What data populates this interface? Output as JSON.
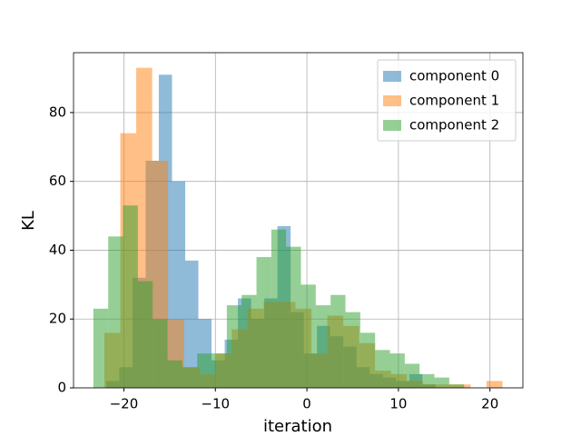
{
  "chart_data": {
    "type": "histogram",
    "x_label": "iteration",
    "y_label": "KL",
    "xlim": [
      -25.5,
      23.6
    ],
    "ylim": [
      0,
      97.4
    ],
    "xticks": [
      {
        "value": -20,
        "label": "−20"
      },
      {
        "value": -10,
        "label": "−10"
      },
      0,
      10,
      20
    ],
    "yticks": [
      0,
      20,
      40,
      60,
      80
    ],
    "grid": true,
    "legend": "upper right",
    "alpha": 0.5,
    "series": [
      {
        "name": "component 0",
        "color": "#1f77b4",
        "bins": [
          -21.94,
          -20.5,
          -19.06,
          -17.62,
          -16.18,
          -14.74,
          -13.3,
          -11.86,
          -10.42,
          -8.98,
          -7.54,
          -6.1,
          -4.66,
          -3.22,
          -1.78,
          -0.34,
          1.1,
          2.54,
          3.98,
          5.42,
          6.86,
          8.3,
          9.74,
          11.18,
          12.62,
          14.06
        ],
        "values": [
          2,
          6,
          32,
          66,
          91,
          60,
          37,
          20,
          8,
          14,
          26,
          20,
          26,
          47,
          22,
          10,
          18,
          15,
          12,
          6,
          4,
          3,
          2,
          4,
          1
        ]
      },
      {
        "name": "component 1",
        "color": "#ff7f0e",
        "bins": [
          -22.13,
          -20.39,
          -18.65,
          -16.91,
          -15.17,
          -13.43,
          -11.69,
          -9.95,
          -8.21,
          -6.47,
          -4.73,
          -2.99,
          -1.25,
          0.49,
          2.23,
          3.97,
          5.71,
          7.45,
          9.19,
          10.93,
          12.67,
          14.41,
          16.15,
          17.89,
          19.63,
          21.37
        ],
        "values": [
          16,
          74,
          93,
          66,
          20,
          6,
          4,
          10,
          17,
          23,
          25,
          25,
          23,
          10,
          21,
          18,
          13,
          5,
          4,
          2,
          1,
          1,
          1,
          0,
          2
        ]
      },
      {
        "name": "component 2",
        "color": "#2ca02c",
        "bins": [
          -23.33,
          -21.71,
          -20.09,
          -18.47,
          -16.85,
          -15.23,
          -13.61,
          -11.99,
          -10.37,
          -8.75,
          -7.13,
          -5.51,
          -3.89,
          -2.27,
          -0.65,
          0.97,
          2.59,
          4.21,
          5.83,
          7.45,
          9.07,
          10.69,
          12.31,
          13.93,
          15.55,
          17.17
        ],
        "values": [
          23,
          44,
          53,
          31,
          20,
          8,
          6,
          10,
          10,
          24,
          27,
          38,
          46,
          41,
          30,
          24,
          27,
          22,
          16,
          11,
          10,
          7,
          4,
          3,
          1
        ]
      }
    ]
  }
}
